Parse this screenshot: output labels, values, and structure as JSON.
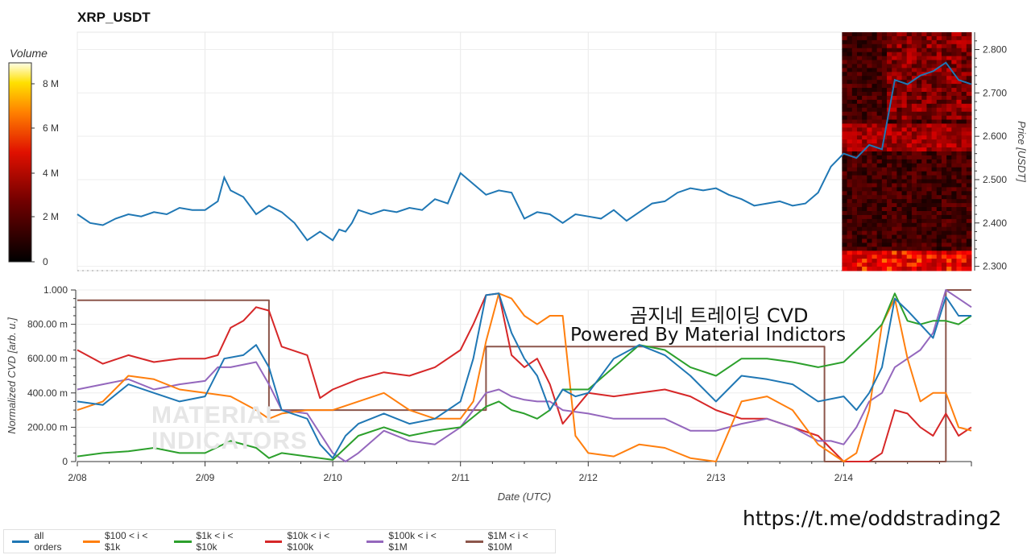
{
  "title": "XRP_USDT",
  "colorbar": {
    "title": "Volume",
    "ticks": [
      "8 M",
      "6 M",
      "4 M",
      "2 M",
      "0"
    ]
  },
  "overlay_text": {
    "line1": "곰지네 트레이딩 CVD",
    "line2": "Powered By Material Indictors",
    "url": "https://t.me/oddstrading2"
  },
  "watermark": {
    "line1": "MATERIAL",
    "line2": "INDICATORS"
  },
  "legend": [
    {
      "label": "all orders",
      "color": "#1f77b4"
    },
    {
      "label": "$100 < i < $1k",
      "color": "#ff7f0e"
    },
    {
      "label": "$1k < i < $10k",
      "color": "#2ca02c"
    },
    {
      "label": "$10k < i < $100k",
      "color": "#d62728"
    },
    {
      "label": "$100k < i < $1M",
      "color": "#9467bd"
    },
    {
      "label": "$1M < i < $10M",
      "color": "#8c564b"
    }
  ],
  "chart_data": [
    {
      "type": "line",
      "title": "XRP_USDT",
      "ylabel": "Price [USDT]",
      "x_ticks": [
        "2/08",
        "2/09",
        "2/10",
        "2/11",
        "2/12",
        "2/13",
        "2/14"
      ],
      "xlim": [
        0,
        7
      ],
      "ylim": [
        2.29,
        2.84
      ],
      "y_ticks": [
        2.3,
        2.4,
        2.5,
        2.6,
        2.7,
        2.8
      ],
      "y_tick_labels": [
        "2.300",
        "2.400",
        "2.500",
        "2.600",
        "2.700",
        "2.800"
      ],
      "heatmap_overlay": {
        "x_range": [
          6.0,
          7.0
        ],
        "colorscale": "black-red-yellow-white",
        "zmax": "9 M"
      },
      "series": [
        {
          "x": [
            0,
            0.1,
            0.2,
            0.3,
            0.4,
            0.5,
            0.6,
            0.7,
            0.8,
            0.9,
            1.0,
            1.1,
            1.15,
            1.2,
            1.3,
            1.4,
            1.5,
            1.6,
            1.7,
            1.8,
            1.9,
            2.0,
            2.05,
            2.1,
            2.15,
            2.2,
            2.3,
            2.4,
            2.5,
            2.6,
            2.7,
            2.8,
            2.9,
            3.0,
            3.1,
            3.2,
            3.3,
            3.4,
            3.5,
            3.6,
            3.7,
            3.8,
            3.9,
            4.0,
            4.1,
            4.2,
            4.3,
            4.4,
            4.5,
            4.6,
            4.7,
            4.8,
            4.9,
            5.0,
            5.1,
            5.2,
            5.3,
            5.4,
            5.5,
            5.6,
            5.7,
            5.8,
            5.9,
            6.0,
            6.1,
            6.2,
            6.3,
            6.4,
            6.5,
            6.6,
            6.7,
            6.8,
            6.9,
            7.0
          ],
          "y": [
            2.42,
            2.4,
            2.395,
            2.41,
            2.42,
            2.415,
            2.425,
            2.42,
            2.435,
            2.43,
            2.43,
            2.45,
            2.505,
            2.475,
            2.46,
            2.42,
            2.44,
            2.425,
            2.4,
            2.36,
            2.38,
            2.36,
            2.385,
            2.38,
            2.4,
            2.43,
            2.42,
            2.43,
            2.425,
            2.435,
            2.43,
            2.455,
            2.445,
            2.515,
            2.49,
            2.465,
            2.475,
            2.47,
            2.41,
            2.425,
            2.42,
            2.4,
            2.42,
            2.415,
            2.41,
            2.43,
            2.405,
            2.425,
            2.445,
            2.45,
            2.47,
            2.48,
            2.475,
            2.48,
            2.465,
            2.455,
            2.44,
            2.445,
            2.45,
            2.44,
            2.445,
            2.47,
            2.53,
            2.56,
            2.55,
            2.58,
            2.57,
            2.73,
            2.72,
            2.74,
            2.75,
            2.77,
            2.73,
            2.72
          ],
          "name": "all orders"
        }
      ]
    },
    {
      "type": "line",
      "xlabel": "Date (UTC)",
      "ylabel": "Normalized CVD [arb. u.]",
      "x_ticks": [
        "2/08",
        "2/09",
        "2/10",
        "2/11",
        "2/12",
        "2/13",
        "2/14"
      ],
      "xlim": [
        0,
        7
      ],
      "ylim": [
        0,
        1
      ],
      "y_ticks": [
        0,
        0.2,
        0.4,
        0.6,
        0.8,
        1.0
      ],
      "y_tick_labels": [
        "0",
        "200.00 m",
        "400.00 m",
        "600.00 m",
        "800.00 m",
        "1.000"
      ],
      "series": [
        {
          "name": "all orders",
          "x": [
            0,
            0.2,
            0.4,
            0.6,
            0.8,
            1.0,
            1.15,
            1.3,
            1.4,
            1.5,
            1.6,
            1.8,
            1.9,
            2.0,
            2.1,
            2.2,
            2.4,
            2.6,
            2.8,
            3.0,
            3.1,
            3.2,
            3.3,
            3.4,
            3.5,
            3.6,
            3.7,
            3.8,
            3.9,
            4.0,
            4.2,
            4.4,
            4.6,
            4.8,
            5.0,
            5.2,
            5.4,
            5.6,
            5.8,
            6.0,
            6.1,
            6.2,
            6.3,
            6.4,
            6.5,
            6.6,
            6.7,
            6.8,
            6.9,
            7.0
          ],
          "y": [
            0.35,
            0.33,
            0.45,
            0.4,
            0.35,
            0.38,
            0.6,
            0.62,
            0.68,
            0.55,
            0.3,
            0.25,
            0.1,
            0.02,
            0.15,
            0.22,
            0.28,
            0.22,
            0.25,
            0.35,
            0.6,
            0.97,
            0.98,
            0.75,
            0.6,
            0.5,
            0.3,
            0.42,
            0.38,
            0.4,
            0.6,
            0.68,
            0.62,
            0.5,
            0.35,
            0.5,
            0.48,
            0.45,
            0.35,
            0.38,
            0.3,
            0.4,
            0.55,
            0.95,
            0.88,
            0.8,
            0.72,
            0.96,
            0.85,
            0.85
          ]
        },
        {
          "name": "$100 < i < $1k",
          "x": [
            0,
            0.2,
            0.4,
            0.6,
            0.8,
            1.0,
            1.2,
            1.4,
            1.5,
            1.6,
            1.8,
            2.0,
            2.2,
            2.4,
            2.6,
            2.8,
            3.0,
            3.1,
            3.2,
            3.3,
            3.4,
            3.5,
            3.6,
            3.7,
            3.8,
            3.9,
            4.0,
            4.2,
            4.4,
            4.6,
            4.8,
            5.0,
            5.2,
            5.4,
            5.6,
            5.8,
            6.0,
            6.1,
            6.2,
            6.3,
            6.4,
            6.5,
            6.6,
            6.7,
            6.8,
            6.9,
            7.0
          ],
          "y": [
            0.3,
            0.35,
            0.5,
            0.48,
            0.42,
            0.4,
            0.38,
            0.3,
            0.25,
            0.28,
            0.3,
            0.3,
            0.35,
            0.4,
            0.3,
            0.25,
            0.25,
            0.35,
            0.7,
            0.98,
            0.95,
            0.85,
            0.8,
            0.85,
            0.85,
            0.15,
            0.05,
            0.03,
            0.1,
            0.08,
            0.02,
            0.0,
            0.35,
            0.38,
            0.3,
            0.1,
            0.0,
            0.05,
            0.3,
            0.8,
            0.95,
            0.6,
            0.35,
            0.4,
            0.4,
            0.2,
            0.18
          ]
        },
        {
          "name": "$1k < i < $10k",
          "x": [
            0,
            0.2,
            0.4,
            0.6,
            0.8,
            1.0,
            1.2,
            1.4,
            1.5,
            1.6,
            1.8,
            2.0,
            2.2,
            2.4,
            2.6,
            2.8,
            3.0,
            3.2,
            3.3,
            3.4,
            3.5,
            3.6,
            3.7,
            3.8,
            4.0,
            4.2,
            4.4,
            4.6,
            4.8,
            5.0,
            5.2,
            5.4,
            5.6,
            5.8,
            6.0,
            6.1,
            6.2,
            6.3,
            6.4,
            6.5,
            6.6,
            6.7,
            6.8,
            6.9,
            7.0
          ],
          "y": [
            0.03,
            0.05,
            0.06,
            0.08,
            0.05,
            0.05,
            0.12,
            0.08,
            0.02,
            0.05,
            0.03,
            0.01,
            0.15,
            0.2,
            0.15,
            0.18,
            0.2,
            0.32,
            0.35,
            0.3,
            0.28,
            0.25,
            0.3,
            0.42,
            0.42,
            0.55,
            0.68,
            0.65,
            0.55,
            0.5,
            0.6,
            0.6,
            0.58,
            0.55,
            0.58,
            0.65,
            0.72,
            0.8,
            0.98,
            0.82,
            0.8,
            0.82,
            0.82,
            0.8,
            0.85
          ]
        },
        {
          "name": "$10k < i < $100k",
          "x": [
            0,
            0.2,
            0.4,
            0.6,
            0.8,
            1.0,
            1.1,
            1.2,
            1.3,
            1.4,
            1.5,
            1.6,
            1.8,
            1.9,
            2.0,
            2.2,
            2.4,
            2.6,
            2.8,
            3.0,
            3.1,
            3.2,
            3.3,
            3.4,
            3.5,
            3.6,
            3.7,
            3.8,
            4.0,
            4.2,
            4.4,
            4.6,
            4.8,
            5.0,
            5.2,
            5.4,
            5.6,
            5.8,
            6.0,
            6.1,
            6.2,
            6.3,
            6.4,
            6.5,
            6.6,
            6.7,
            6.8,
            6.9,
            7.0
          ],
          "y": [
            0.65,
            0.57,
            0.62,
            0.58,
            0.6,
            0.6,
            0.62,
            0.78,
            0.82,
            0.9,
            0.88,
            0.67,
            0.62,
            0.37,
            0.42,
            0.48,
            0.52,
            0.5,
            0.55,
            0.65,
            0.8,
            0.97,
            0.98,
            0.62,
            0.55,
            0.6,
            0.45,
            0.22,
            0.4,
            0.38,
            0.4,
            0.42,
            0.38,
            0.3,
            0.25,
            0.25,
            0.2,
            0.15,
            0.0,
            0.0,
            0.0,
            0.05,
            0.3,
            0.28,
            0.2,
            0.15,
            0.28,
            0.15,
            0.2
          ]
        },
        {
          "name": "$100k < i < $1M",
          "x": [
            0,
            0.2,
            0.4,
            0.6,
            0.8,
            1.0,
            1.1,
            1.2,
            1.4,
            1.5,
            1.6,
            1.8,
            2.0,
            2.1,
            2.2,
            2.4,
            2.6,
            2.8,
            3.0,
            3.1,
            3.2,
            3.3,
            3.4,
            3.5,
            3.6,
            3.7,
            3.8,
            4.0,
            4.2,
            4.4,
            4.6,
            4.8,
            5.0,
            5.2,
            5.4,
            5.6,
            5.8,
            5.9,
            6.0,
            6.1,
            6.2,
            6.3,
            6.4,
            6.5,
            6.6,
            6.7,
            6.8,
            6.9,
            7.0
          ],
          "y": [
            0.42,
            0.45,
            0.48,
            0.42,
            0.45,
            0.47,
            0.55,
            0.55,
            0.58,
            0.45,
            0.3,
            0.28,
            0.05,
            0.0,
            0.05,
            0.18,
            0.12,
            0.1,
            0.2,
            0.3,
            0.4,
            0.42,
            0.38,
            0.36,
            0.35,
            0.35,
            0.3,
            0.28,
            0.25,
            0.25,
            0.25,
            0.18,
            0.18,
            0.22,
            0.25,
            0.2,
            0.12,
            0.12,
            0.1,
            0.2,
            0.35,
            0.4,
            0.55,
            0.6,
            0.65,
            0.75,
            1.0,
            0.95,
            0.9
          ]
        },
        {
          "name": "$1M < i < $10M",
          "x": [
            0,
            1.5,
            1.5,
            3.2,
            3.2,
            5.85,
            5.85,
            6.0,
            6.0,
            6.8,
            6.8,
            7.0
          ],
          "y": [
            0.94,
            0.94,
            0.3,
            0.3,
            0.67,
            0.67,
            0.0,
            0.0,
            0.0,
            0.0,
            1.0,
            1.0
          ]
        }
      ]
    }
  ]
}
